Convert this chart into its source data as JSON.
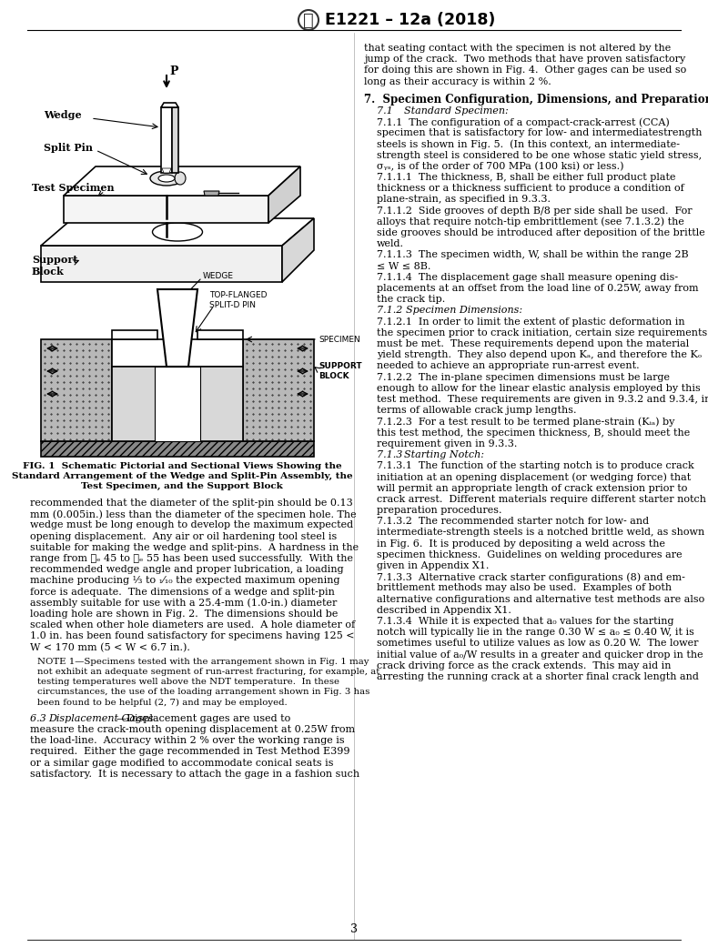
{
  "page_bg": "#ffffff",
  "header_text": "E1221 – 12a (2018)",
  "page_number": "3",
  "fig_caption_line1": "FIG. 1  Schematic Pictorial and Sectional Views Showing the",
  "fig_caption_line2": "Standard Arrangement of the Wedge and Split-Pin Assembly, the",
  "fig_caption_line3": "Test Specimen, and the Support Block",
  "text_color": "#000000",
  "red_color": "#cc0000"
}
